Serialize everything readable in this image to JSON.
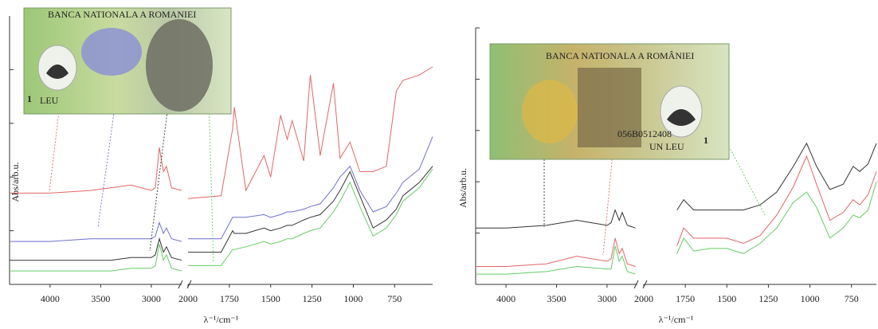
{
  "chart_data": [
    {
      "type": "line",
      "xlabel": "λ⁻¹/cm⁻¹",
      "ylabel": "Abs/arb.u.",
      "xlim": [
        4400,
        520
      ],
      "xbreak": [
        2700,
        2000
      ],
      "ylim": [
        0,
        10
      ],
      "yticks": [
        0,
        2,
        4,
        6,
        8
      ],
      "xticks": [
        4000,
        3500,
        3000,
        2000,
        1750,
        1500,
        1250,
        1000,
        750
      ],
      "inset_texts": [
        "BANCA NATIONALA A ROMANIEI",
        "1",
        "LEU"
      ],
      "x": [
        4400,
        4000,
        3600,
        3400,
        3200,
        3000,
        2960,
        2920,
        2880,
        2850,
        2800,
        2700,
        2400,
        2000,
        1800,
        1730,
        1720,
        1650,
        1540,
        1500,
        1440,
        1400,
        1370,
        1300,
        1260,
        1200,
        1120,
        1080,
        1020,
        960,
        880,
        800,
        740,
        700,
        600,
        520
      ],
      "series": [
        {
          "color": "#e06666",
          "values": [
            3.4,
            3.4,
            3.5,
            3.6,
            3.7,
            3.5,
            3.6,
            5.1,
            4.2,
            4.4,
            3.6,
            3.5,
            null,
            3.2,
            3.3,
            5.8,
            6.6,
            3.5,
            4.8,
            4.0,
            6.3,
            5.4,
            6.1,
            4.6,
            7.8,
            4.8,
            7.5,
            4.7,
            5.3,
            4.2,
            4.2,
            4.4,
            7.2,
            7.6,
            7.8,
            8.1
          ]
        },
        {
          "color": "#6f6fd0",
          "values": [
            1.6,
            1.6,
            1.7,
            1.7,
            1.7,
            1.7,
            1.8,
            2.3,
            1.9,
            2.1,
            1.7,
            1.6,
            null,
            1.7,
            1.7,
            2.5,
            2.5,
            2.5,
            2.6,
            2.5,
            2.6,
            2.7,
            2.7,
            2.8,
            2.9,
            3.0,
            3.6,
            4.0,
            4.4,
            3.5,
            2.7,
            2.9,
            3.4,
            3.8,
            4.3,
            5.5
          ]
        },
        {
          "color": "#333333",
          "values": [
            0.9,
            0.9,
            0.9,
            0.9,
            1.0,
            1.0,
            1.1,
            1.7,
            1.2,
            1.4,
            1.0,
            0.9,
            null,
            1.2,
            1.2,
            2.0,
            1.9,
            1.9,
            2.1,
            2.0,
            2.1,
            2.2,
            2.2,
            2.4,
            2.5,
            2.6,
            3.1,
            3.5,
            4.2,
            3.3,
            2.1,
            2.4,
            2.8,
            3.3,
            3.8,
            4.4
          ]
        },
        {
          "color": "#66cc66",
          "values": [
            0.5,
            0.5,
            0.5,
            0.5,
            0.6,
            0.6,
            0.7,
            1.5,
            0.9,
            1.1,
            0.6,
            0.5,
            null,
            0.7,
            0.7,
            1.3,
            1.3,
            1.4,
            1.6,
            1.5,
            1.6,
            1.7,
            1.7,
            1.9,
            2.0,
            2.1,
            2.7,
            3.1,
            3.8,
            2.9,
            1.8,
            2.1,
            2.6,
            3.1,
            3.6,
            4.3
          ]
        }
      ]
    },
    {
      "type": "line",
      "xlabel": "λ⁻¹/cm⁻¹",
      "ylabel": "Abs/arb.u.",
      "xlim": [
        4300,
        600
      ],
      "xbreak": [
        2700,
        2000
      ],
      "ylim": [
        0,
        10
      ],
      "yticks": [
        0,
        2,
        4,
        6,
        8,
        10
      ],
      "xticks": [
        4000,
        3500,
        3000,
        2000,
        1750,
        1500,
        1250,
        1000,
        750
      ],
      "inset_texts": [
        "BANCA NATIONALA A ROMÂNIEI",
        "056B0512408",
        "UN LEU",
        "1"
      ],
      "x": [
        4300,
        4000,
        3600,
        3300,
        3000,
        2960,
        2920,
        2880,
        2850,
        2800,
        2720,
        2400,
        1800,
        1760,
        1700,
        1600,
        1500,
        1400,
        1300,
        1200,
        1100,
        1020,
        960,
        880,
        800,
        740,
        700,
        650,
        600
      ],
      "series": [
        {
          "color": "#333333",
          "values": [
            2.2,
            2.2,
            2.3,
            2.5,
            2.3,
            2.4,
            2.9,
            2.5,
            2.8,
            2.3,
            2.2,
            null,
            2.9,
            3.3,
            2.9,
            2.9,
            2.9,
            2.9,
            3.1,
            3.6,
            4.6,
            5.5,
            4.6,
            3.7,
            3.9,
            4.6,
            4.4,
            4.7,
            5.5
          ]
        },
        {
          "color": "#e06666",
          "values": [
            0.7,
            0.7,
            0.8,
            1.1,
            0.9,
            1.0,
            1.8,
            1.2,
            1.4,
            0.8,
            0.7,
            null,
            1.5,
            2.2,
            1.8,
            1.8,
            1.8,
            1.6,
            1.9,
            2.7,
            3.8,
            5.0,
            3.9,
            2.5,
            2.8,
            3.3,
            3.1,
            3.5,
            4.4
          ]
        },
        {
          "color": "#66cc66",
          "values": [
            0.4,
            0.4,
            0.5,
            0.7,
            0.6,
            0.6,
            1.5,
            0.9,
            1.1,
            0.5,
            0.4,
            null,
            1.2,
            1.8,
            1.3,
            1.4,
            1.4,
            1.2,
            1.6,
            2.2,
            3.2,
            3.6,
            3.0,
            1.8,
            2.2,
            2.7,
            2.6,
            2.9,
            4.0
          ]
        }
      ]
    }
  ]
}
